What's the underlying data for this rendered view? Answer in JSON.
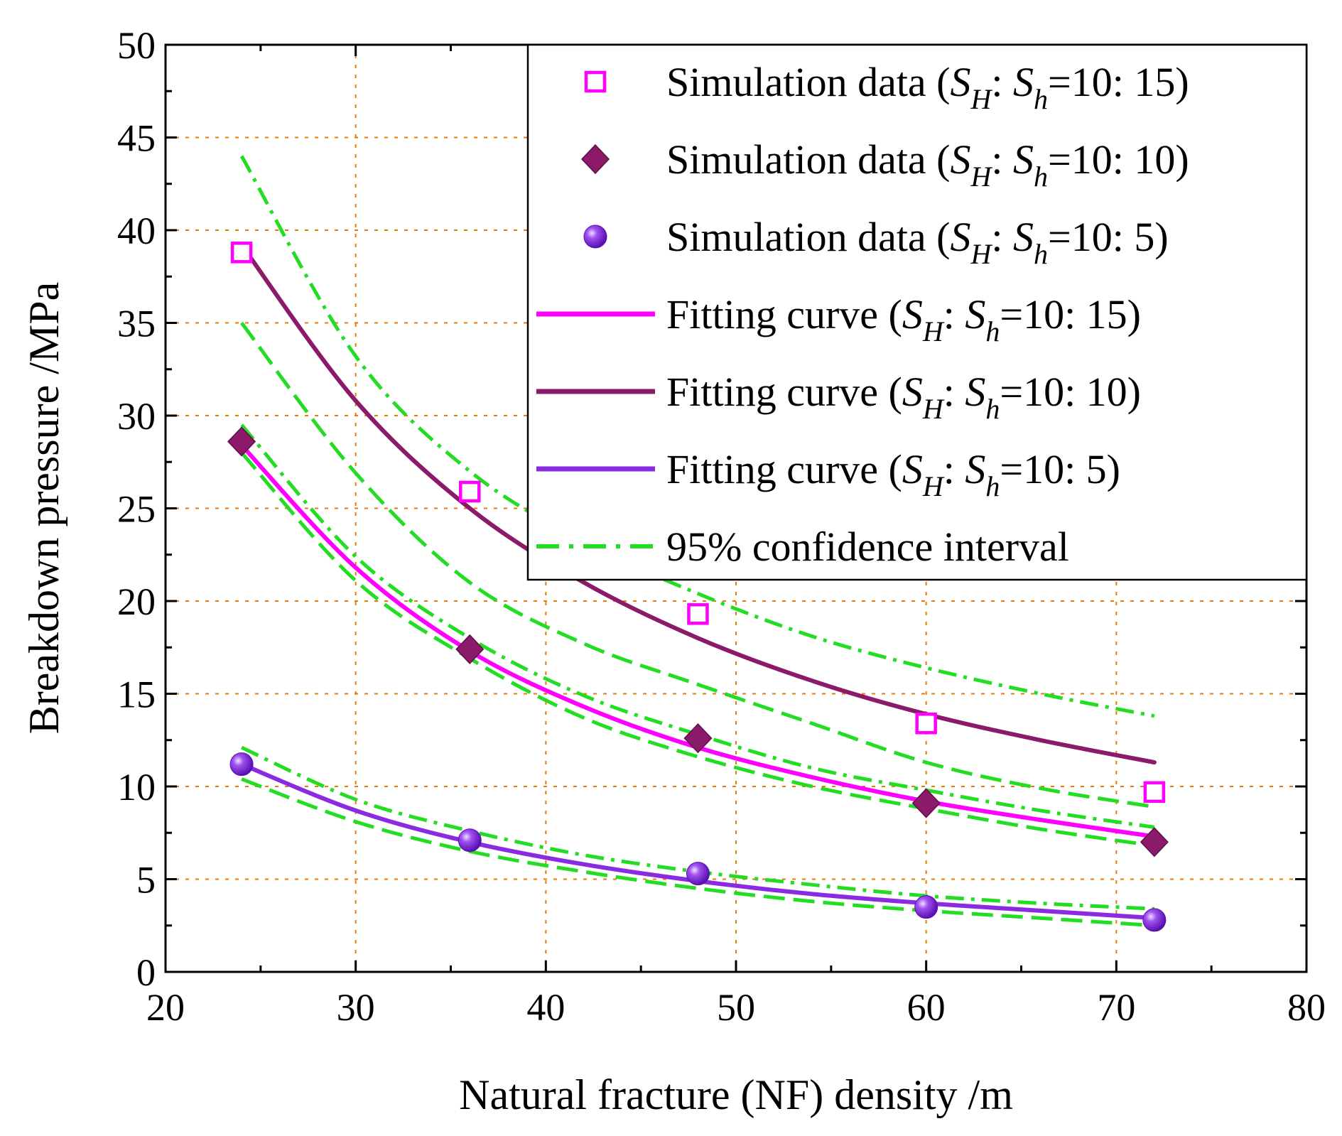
{
  "chart_data": {
    "type": "scatter",
    "xlabel": "Natural fracture (NF) density /m",
    "ylabel": "Breakdown pressure /MPa",
    "xlim": [
      20,
      80
    ],
    "ylim": [
      0,
      50
    ],
    "xticks": [
      20,
      30,
      40,
      50,
      60,
      70,
      80
    ],
    "yticks": [
      0,
      5,
      10,
      15,
      20,
      25,
      30,
      35,
      40,
      45,
      50
    ],
    "grid": "dotted",
    "grid_color": "#f07800",
    "legend_position": "top-right",
    "series": [
      {
        "name": "Simulation data (SH: Sh=10: 15)",
        "kind": "markers",
        "marker": "open-square",
        "color": "#ff00ff",
        "x": [
          24,
          36,
          48,
          60,
          72
        ],
        "y": [
          38.8,
          25.9,
          19.3,
          13.4,
          9.7
        ]
      },
      {
        "name": "Simulation data (SH: Sh=10: 10)",
        "kind": "markers",
        "marker": "diamond",
        "color": "#8b1a6b",
        "x": [
          24,
          36,
          48,
          60,
          72
        ],
        "y": [
          28.6,
          17.4,
          12.6,
          9.1,
          7.0
        ]
      },
      {
        "name": "Simulation data (SH: Sh=10: 5)",
        "kind": "markers",
        "marker": "sphere",
        "color": "#8a2be2",
        "x": [
          24,
          36,
          48,
          60,
          72
        ],
        "y": [
          11.2,
          7.1,
          5.3,
          3.5,
          2.8
        ]
      },
      {
        "name": "Fitting curve (SH: Sh=10: 15)",
        "kind": "line",
        "color": "#ff00ff",
        "x": [
          24,
          30,
          36,
          42,
          48,
          54,
          60,
          66,
          72
        ],
        "y": [
          28.4,
          21.8,
          17.3,
          14.3,
          12.1,
          10.5,
          9.2,
          8.2,
          7.3
        ]
      },
      {
        "name": "Fitting curve (SH: Sh=10: 10)",
        "kind": "line",
        "color": "#8b1a6b",
        "x": [
          24,
          30,
          36,
          42,
          48,
          54,
          60,
          66,
          72
        ],
        "y": [
          39.2,
          30.8,
          25.0,
          21.0,
          18.0,
          15.7,
          13.9,
          12.5,
          11.3
        ]
      },
      {
        "name": "Fitting curve (SH: Sh=10: 5)",
        "kind": "line",
        "color": "#8a2be2",
        "x": [
          24,
          30,
          36,
          42,
          48,
          54,
          60,
          66,
          72
        ],
        "y": [
          11.2,
          8.7,
          7.0,
          5.8,
          4.9,
          4.2,
          3.7,
          3.3,
          2.9
        ]
      }
    ],
    "confidence_bands": [
      {
        "name": "95% confidence interval",
        "color": "#22dd22",
        "x": [
          24,
          30,
          36,
          42,
          48,
          54,
          60,
          66,
          72
        ],
        "upper": [
          44.0,
          33.2,
          27.0,
          23.2,
          20.4,
          18.1,
          16.4,
          15.0,
          13.8
        ],
        "lower": [
          35.0,
          26.9,
          21.0,
          17.7,
          15.5,
          13.4,
          11.3,
          9.9,
          8.9
        ]
      },
      {
        "name": "95% confidence interval",
        "color": "#22dd22",
        "x": [
          24,
          30,
          36,
          42,
          48,
          54,
          60,
          66,
          72
        ],
        "upper": [
          29.5,
          22.4,
          18.0,
          14.9,
          12.8,
          11.0,
          9.8,
          8.7,
          7.8
        ],
        "lower": [
          28.0,
          21.1,
          16.9,
          13.7,
          11.6,
          10.0,
          8.8,
          7.7,
          6.8
        ]
      },
      {
        "name": "95% confidence interval",
        "color": "#22dd22",
        "x": [
          24,
          30,
          36,
          42,
          48,
          54,
          60,
          66,
          72
        ],
        "upper": [
          12.1,
          9.3,
          7.6,
          6.3,
          5.4,
          4.7,
          4.1,
          3.7,
          3.4
        ],
        "lower": [
          10.4,
          8.1,
          6.5,
          5.4,
          4.5,
          3.8,
          3.3,
          2.9,
          2.5
        ]
      }
    ],
    "legend": [
      {
        "kind": "open-square",
        "color": "#ff00ff",
        "prefix": "Simulation data (",
        "ratio": "=10: 15)"
      },
      {
        "kind": "diamond",
        "color": "#8b1a6b",
        "prefix": "Simulation data (",
        "ratio": "=10: 10)"
      },
      {
        "kind": "sphere",
        "color": "#8a2be2",
        "prefix": "Simulation data (",
        "ratio": "=10:   5)"
      },
      {
        "kind": "solid",
        "color": "#ff00ff",
        "prefix": "Fitting curve (",
        "ratio": "=10: 15)"
      },
      {
        "kind": "solid",
        "color": "#8b1a6b",
        "prefix": "Fitting curve (",
        "ratio": "=10: 10)"
      },
      {
        "kind": "solid",
        "color": "#8a2be2",
        "prefix": "Fitting curve (",
        "ratio": "=10:   5)"
      },
      {
        "kind": "dashdot",
        "color": "#22dd22",
        "prefix": "95% confidence interval",
        "ratio": ""
      }
    ],
    "legend_symbols": {
      "S": "S",
      "sub_H": "H",
      "sub_h": "h",
      "sep": ": "
    }
  }
}
